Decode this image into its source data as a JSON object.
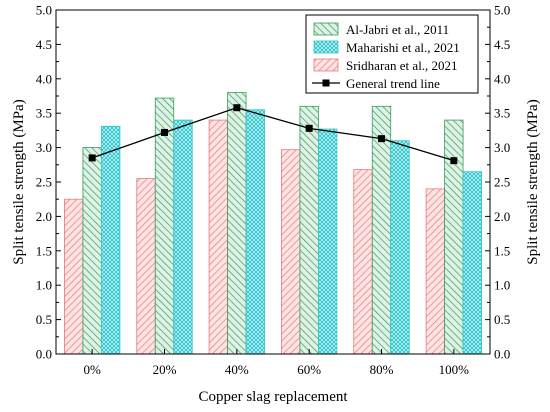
{
  "chart_data": {
    "type": "bar",
    "xlabel": "Copper slag replacement",
    "ylabel": "Split tensile strength (MPa)",
    "ylabel_right": "Split tensile strength (MPa)",
    "ylim": [
      0,
      5
    ],
    "yticks": [
      "0.0",
      "0.5",
      "1.0",
      "1.5",
      "2.0",
      "2.5",
      "3.0",
      "3.5",
      "4.0",
      "4.5",
      "5.0"
    ],
    "categories": [
      "0%",
      "20%",
      "40%",
      "60%",
      "80%",
      "100%"
    ],
    "series": [
      {
        "name": "Sridharan et al., 2021",
        "values": [
          2.25,
          2.55,
          3.4,
          2.97,
          2.68,
          2.4
        ],
        "color": "#e87a7a",
        "hatch": "diagonal"
      },
      {
        "name": "Al-Jabri et al., 2011",
        "values": [
          3.0,
          3.72,
          3.8,
          3.6,
          3.6,
          3.4
        ],
        "color": "#3a9a5a",
        "hatch": "diagonal-reverse"
      },
      {
        "name": "Maharishi et al., 2021",
        "values": [
          3.31,
          3.4,
          3.55,
          3.27,
          3.1,
          2.65
        ],
        "color": "#2fc6cf",
        "hatch": "crosshatch"
      }
    ],
    "trend": {
      "name": "General trend line",
      "values": [
        2.85,
        3.22,
        3.58,
        3.28,
        3.13,
        2.81
      ],
      "color": "#000000",
      "marker": "square"
    },
    "legend_order": [
      "Al-Jabri et al., 2011",
      "Maharishi et al., 2021",
      "Sridharan et al., 2021",
      "General trend line"
    ],
    "legend_position": "top-right",
    "grid": false
  }
}
